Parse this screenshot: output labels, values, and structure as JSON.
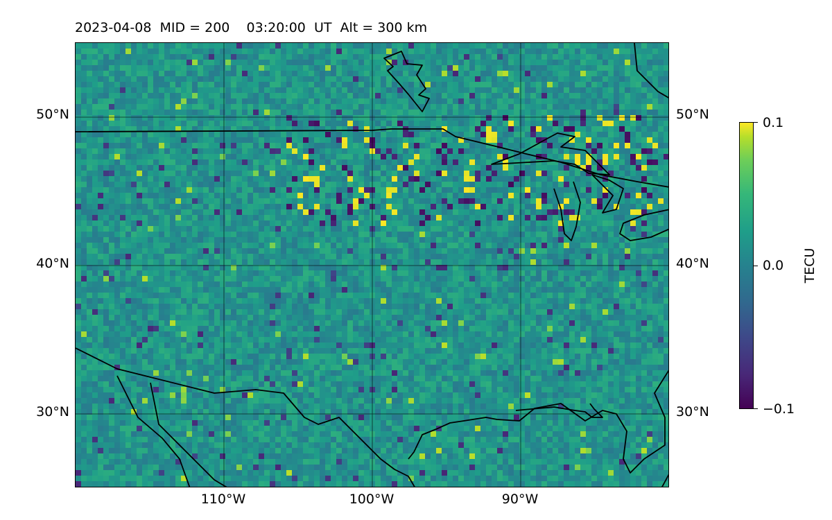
{
  "title": "2023-04-08  MID = 200    03:20:00  UT  Alt = 300 km",
  "map": {
    "lat_labels": [
      "50°N",
      "40°N",
      "30°N"
    ],
    "lon_labels": [
      "110°W",
      "100°W",
      "90°W"
    ],
    "extent": {
      "lon": [
        -120,
        -80
      ],
      "lat": [
        25,
        55
      ]
    }
  },
  "colorbar": {
    "label": "TECU",
    "ticks": [
      "0.1",
      "0.0",
      "−0.1"
    ],
    "range": [
      -0.1,
      0.1
    ],
    "colormap": "viridis"
  },
  "colors": {
    "low": "#440154",
    "mid": "#21918c",
    "high": "#fde725",
    "coast": "#000000"
  }
}
